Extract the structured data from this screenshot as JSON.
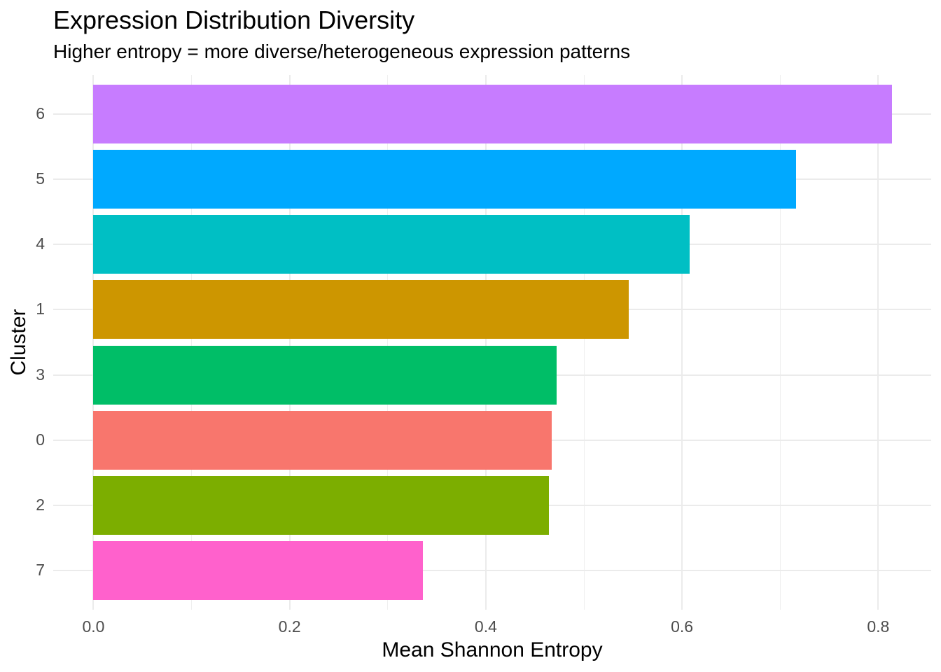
{
  "chart_data": {
    "type": "bar",
    "orientation": "horizontal",
    "title": "Expression Distribution Diversity",
    "subtitle": "Higher entropy = more diverse/heterogeneous expression patterns",
    "xlabel": "Mean Shannon Entropy",
    "ylabel": "Cluster",
    "categories": [
      "6",
      "5",
      "4",
      "1",
      "3",
      "0",
      "2",
      "7"
    ],
    "values": [
      0.814,
      0.716,
      0.608,
      0.546,
      0.472,
      0.467,
      0.464,
      0.336
    ],
    "bar_colors": [
      "#C77CFF",
      "#00A9FF",
      "#00BFC4",
      "#CD9600",
      "#00BE67",
      "#F8766D",
      "#7CAE00",
      "#FF61CC"
    ],
    "xlim": [
      -0.041,
      0.854
    ],
    "x_major_ticks": [
      0.0,
      0.2,
      0.4,
      0.6,
      0.8
    ],
    "x_tick_labels": [
      "0.0",
      "0.2",
      "0.4",
      "0.6",
      "0.8"
    ],
    "x_minor_ticks": [
      0.1,
      0.3,
      0.5,
      0.7
    ],
    "bar_width_fraction": 0.9,
    "grid": true,
    "legend_position": "none",
    "colors": {
      "background": "#FFFFFF",
      "grid_major": "#EBEBEB",
      "grid_minor": "#EFEFEF",
      "axis_text": "#4D4D4D",
      "text": "#000000"
    }
  }
}
